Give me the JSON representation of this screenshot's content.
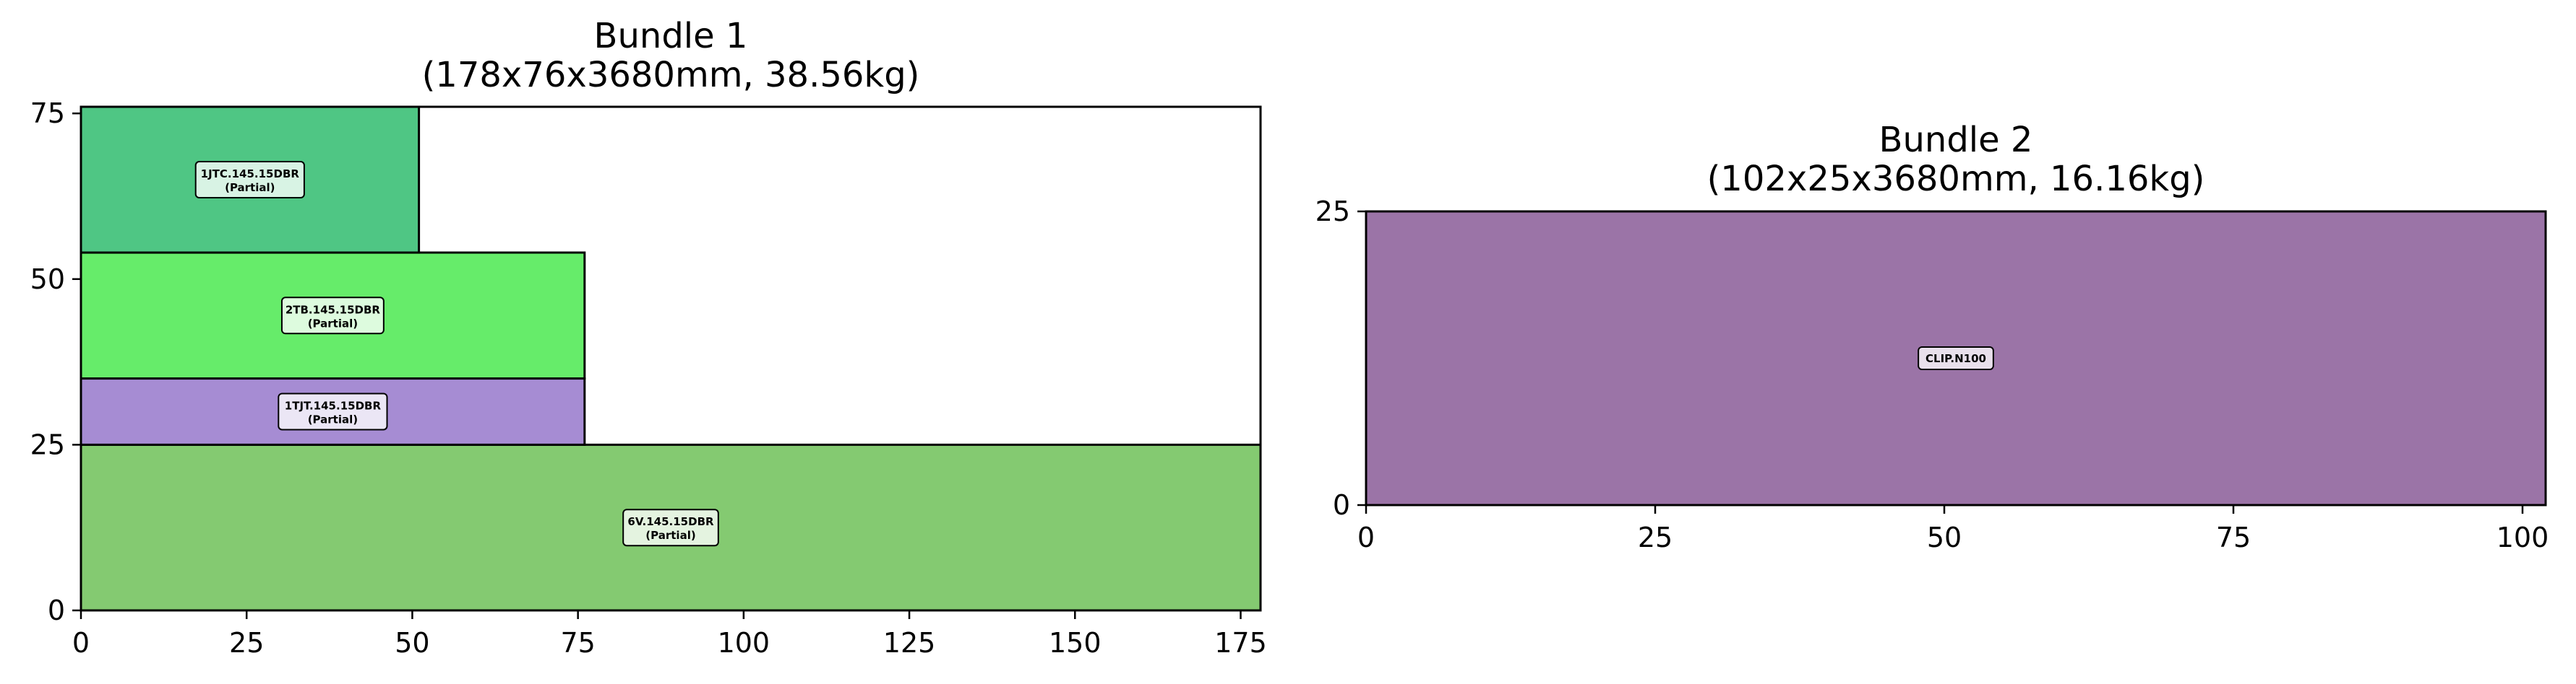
{
  "chart_data": [
    {
      "type": "bar",
      "title_line1": "Bundle 1",
      "title_line2": "(178x76x3680mm, 38.56kg)",
      "xlim": [
        0,
        178
      ],
      "ylim": [
        0,
        76
      ],
      "xticks": [
        0,
        25,
        50,
        75,
        100,
        125,
        150,
        175
      ],
      "yticks": [
        0,
        25,
        50,
        75
      ],
      "grid": false,
      "rects": [
        {
          "x": 0,
          "y": 0,
          "w": 178,
          "h": 25,
          "color": "#84ca71",
          "label": "6V.145.15DBR",
          "sublabel": "(Partial)"
        },
        {
          "x": 0,
          "y": 25,
          "w": 76,
          "h": 10,
          "color": "#a68cd3",
          "label": "1TJT.145.15DBR",
          "sublabel": "(Partial)"
        },
        {
          "x": 0,
          "y": 35,
          "w": 76,
          "h": 19,
          "color": "#66ec6a",
          "label": "2TB.145.15DBR",
          "sublabel": "(Partial)"
        },
        {
          "x": 0,
          "y": 54,
          "w": 51,
          "h": 22,
          "color": "#4fc684",
          "label": "1JTC.145.15DBR",
          "sublabel": "(Partial)"
        }
      ]
    },
    {
      "type": "bar",
      "title_line1": "Bundle 2",
      "title_line2": "(102x25x3680mm, 16.16kg)",
      "xlim": [
        0,
        102
      ],
      "ylim": [
        0,
        25
      ],
      "xticks": [
        0,
        25,
        50,
        75,
        100
      ],
      "yticks": [
        0,
        25
      ],
      "grid": false,
      "rects": [
        {
          "x": 0,
          "y": 0,
          "w": 102,
          "h": 25,
          "color": "#9b74a7",
          "label": "CLIP.N100",
          "sublabel": ""
        }
      ]
    }
  ]
}
